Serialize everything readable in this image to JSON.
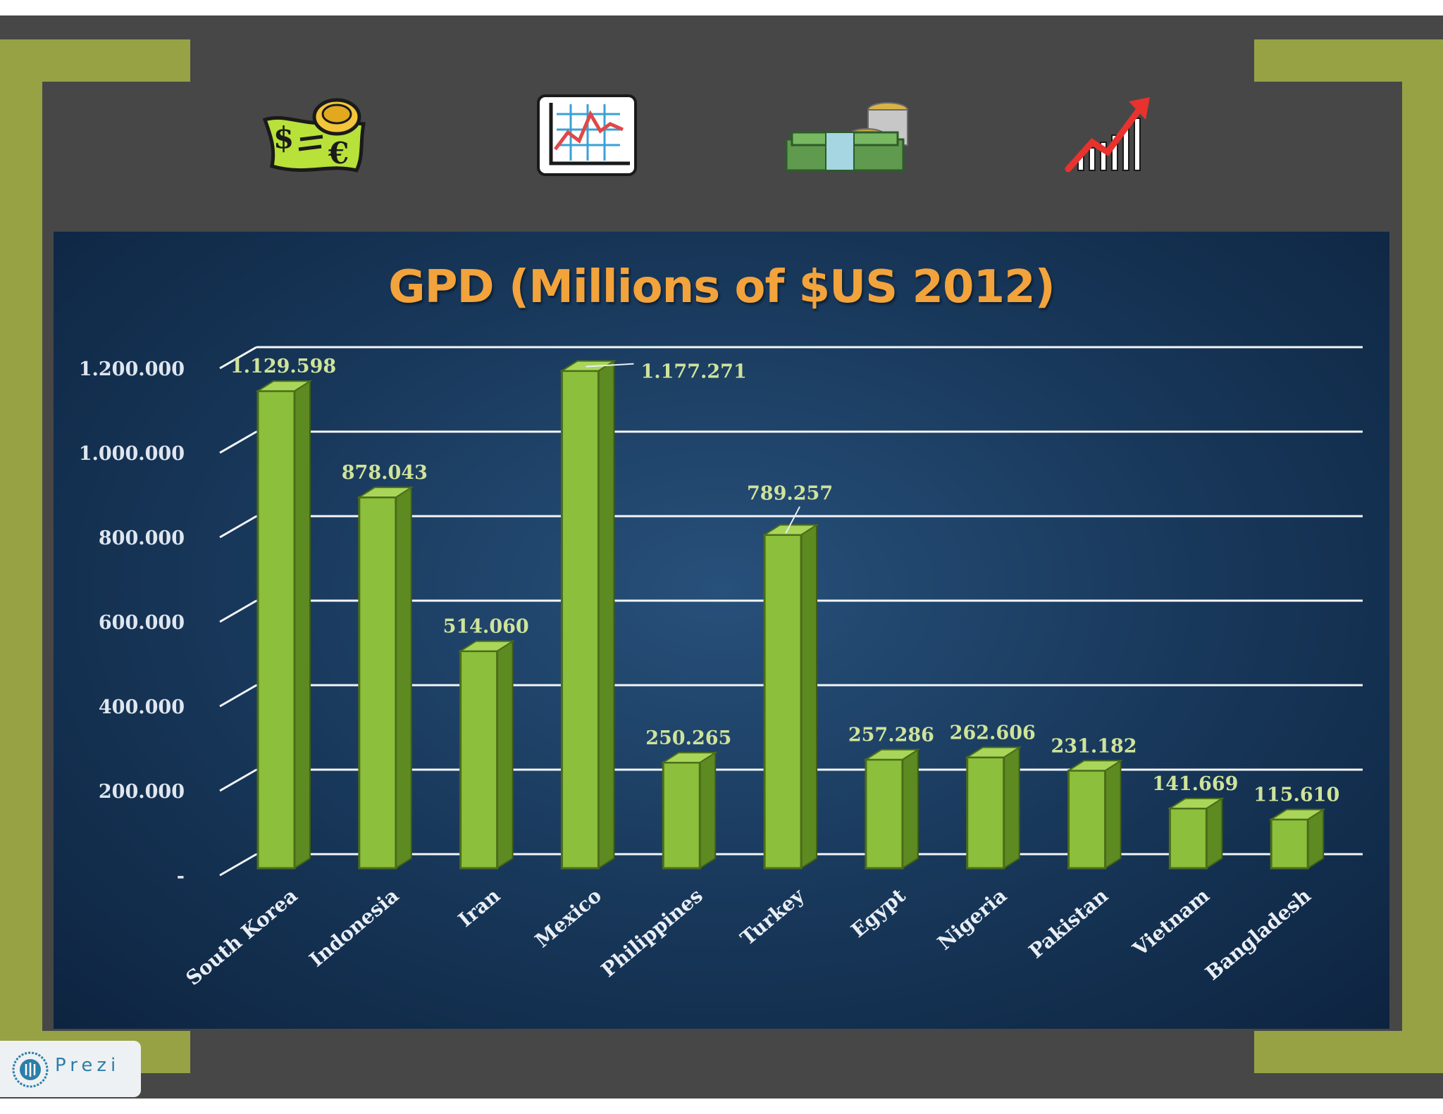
{
  "slide": {
    "background": "#474747",
    "accent": "#97a245"
  },
  "icons": [
    {
      "name": "money-bill-coin-icon"
    },
    {
      "name": "line-chart-board-icon"
    },
    {
      "name": "cash-stack-coins-icon"
    },
    {
      "name": "rising-bars-arrow-icon"
    }
  ],
  "chart_data": {
    "type": "bar",
    "title": "GPD (Millions of $US 2012)",
    "categories": [
      "South Korea",
      "Indonesia",
      "Iran",
      "Mexico",
      "Philippines",
      "Turkey",
      "Egypt",
      "Nigeria",
      "Pakistan",
      "Vietnam",
      "Bangladesh"
    ],
    "values": [
      1129598,
      878043,
      514060,
      1177271,
      250265,
      789257,
      257286,
      262606,
      231182,
      141669,
      115610
    ],
    "value_labels": [
      "1.129.598",
      "878.043",
      "514.060",
      "1.177.271",
      "250.265",
      "789.257",
      "257.286",
      "262.606",
      "231.182",
      "141.669",
      "115.610"
    ],
    "yticks": [
      0,
      200000,
      400000,
      600000,
      800000,
      1000000,
      1200000
    ],
    "ytick_labels": [
      "-",
      "200.000",
      "400.000",
      "600.000",
      "800.000",
      "1.000.000",
      "1.200.000"
    ],
    "ylim": [
      0,
      1200000
    ],
    "xlabel": "",
    "ylabel": "",
    "grid": true,
    "bar_color": "#8cbf3b",
    "bar_side_color": "#5d8a21",
    "bar_top_color": "#a9d659",
    "value_label_color": "#cfe39a"
  },
  "badge": {
    "text": "Prezi"
  }
}
